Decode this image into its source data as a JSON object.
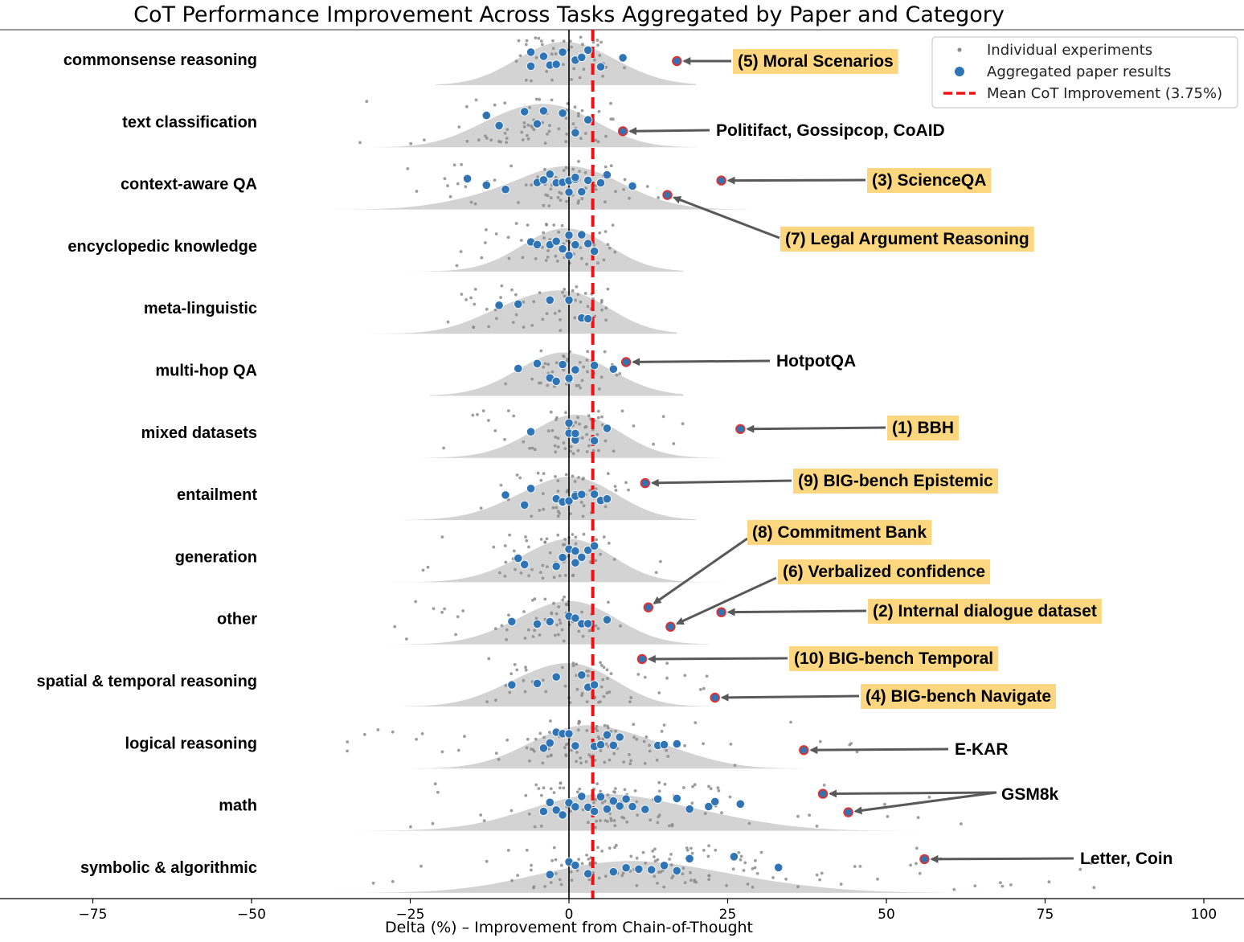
{
  "chart_data": {
    "type": "scatter",
    "title": "CoT Performance Improvement Across Tasks Aggregated by Paper and Category",
    "xlabel": "Delta (%) – Improvement from Chain-of-Thought",
    "ylabel": "",
    "xlim": [
      -80,
      100
    ],
    "xticks": [
      -75,
      -50,
      -25,
      0,
      25,
      50,
      75,
      100
    ],
    "xtick_labels": [
      "−75",
      "−50",
      "−25",
      "0",
      "25",
      "50",
      "75",
      "100"
    ],
    "mean_value": 3.75,
    "grid": false,
    "legend_position": "top-right",
    "legend": [
      {
        "key": "individual",
        "label": "Individual experiments"
      },
      {
        "key": "aggregated",
        "label": "Aggregated paper results"
      },
      {
        "key": "mean",
        "label": "Mean CoT Improvement (3.75%)"
      }
    ],
    "colors": {
      "individual": "#8c8c8c",
      "aggregated": "#2f75b5",
      "highlight_edge": "#e03030",
      "mean_line": "#ee1111",
      "density": "#d3d3d3",
      "annotation_box": "#fcd77f",
      "arrow": "#595959"
    },
    "categories": [
      "commonsense reasoning",
      "text classification",
      "context-aware QA",
      "encyclopedic knowledge",
      "meta-linguistic",
      "multi-hop QA",
      "mixed datasets",
      "entailment",
      "generation",
      "other",
      "spatial & temporal reasoning",
      "logical reasoning",
      "math",
      "symbolic & algorithmic"
    ],
    "series": [
      {
        "category": "commonsense reasoning",
        "aggregated": [
          -6,
          -6,
          -4,
          -3,
          -2,
          -1,
          1,
          2,
          3,
          5,
          8.5
        ],
        "individual_range": [
          -9,
          10
        ]
      },
      {
        "category": "text classification",
        "aggregated": [
          -13,
          -11,
          -7,
          -5,
          -4,
          -1,
          1,
          3
        ],
        "individual_range": [
          -35,
          10
        ]
      },
      {
        "category": "context-aware QA",
        "aggregated": [
          -16,
          -13,
          -10,
          -5,
          -4,
          -3,
          -2,
          -1,
          0,
          0,
          1,
          1,
          2,
          3,
          5,
          6,
          10
        ],
        "individual_range": [
          -27,
          18
        ]
      },
      {
        "category": "encyclopedic knowledge",
        "aggregated": [
          -6,
          -5,
          -3,
          -2,
          -1,
          0,
          0,
          1,
          2,
          3,
          4
        ],
        "individual_range": [
          -20,
          8
        ]
      },
      {
        "category": "meta-linguistic",
        "aggregated": [
          -11,
          -8,
          -3,
          0,
          2,
          3
        ],
        "individual_range": [
          -22,
          7
        ]
      },
      {
        "category": "multi-hop QA",
        "aggregated": [
          -8,
          -5,
          -3,
          -2,
          -1,
          0,
          0,
          1,
          4,
          7
        ],
        "individual_range": [
          -10,
          8
        ]
      },
      {
        "category": "mixed datasets",
        "aggregated": [
          -6,
          0,
          0,
          1,
          1,
          4,
          6
        ],
        "individual_range": [
          -24,
          18
        ]
      },
      {
        "category": "entailment",
        "aggregated": [
          -10,
          -7,
          -6,
          -2,
          -1,
          -1,
          0,
          1,
          1,
          2,
          4,
          5,
          6
        ],
        "individual_range": [
          -14,
          10
        ]
      },
      {
        "category": "generation",
        "aggregated": [
          -8,
          -7,
          -2,
          -1,
          0,
          1,
          1,
          2,
          3,
          4
        ],
        "individual_range": [
          -26,
          15
        ]
      },
      {
        "category": "other",
        "aggregated": [
          -9,
          -5,
          -3,
          0,
          1,
          2,
          3,
          6
        ],
        "individual_range": [
          -28,
          12
        ]
      },
      {
        "category": "spatial & temporal reasoning",
        "aggregated": [
          -9,
          -5,
          -2,
          2,
          3,
          4
        ],
        "individual_range": [
          -14,
          22
        ]
      },
      {
        "category": "logical reasoning",
        "aggregated": [
          -4,
          -3,
          -2,
          -1,
          0,
          1,
          4,
          5,
          6,
          7,
          8,
          14,
          15,
          17
        ],
        "individual_range": [
          -35,
          50
        ]
      },
      {
        "category": "math",
        "aggregated": [
          -4,
          -3,
          -2,
          -1,
          0,
          1,
          2,
          3,
          4,
          5,
          6,
          7,
          8,
          9,
          10,
          12,
          14,
          17,
          19,
          22,
          23,
          27
        ],
        "individual_range": [
          -26,
          62
        ]
      },
      {
        "category": "symbolic & algorithmic",
        "aggregated": [
          -3,
          0,
          1,
          3,
          7,
          9,
          11,
          13,
          15,
          17,
          19,
          26,
          33
        ],
        "individual_range": [
          -35,
          84
        ]
      }
    ],
    "highlights": [
      {
        "category": "commonsense reasoning",
        "x": 17,
        "label": "(5) Moral Scenarios",
        "boxed": true
      },
      {
        "category": "text classification",
        "x": 8.5,
        "label": "Politifact, Gossipcop, CoAID",
        "boxed": false
      },
      {
        "category": "context-aware QA",
        "x": 24,
        "label": "(3) ScienceQA",
        "boxed": true
      },
      {
        "category": "context-aware QA",
        "x": 15.5,
        "label": "(7) Legal Argument Reasoning",
        "boxed": true
      },
      {
        "category": "multi-hop QA",
        "x": 9,
        "label": "HotpotQA",
        "boxed": false
      },
      {
        "category": "mixed datasets",
        "x": 27,
        "label": "(1) BBH",
        "boxed": true
      },
      {
        "category": "entailment",
        "x": 12,
        "label": "(9) BIG-bench Epistemic",
        "boxed": true
      },
      {
        "category": "other",
        "x": 12.5,
        "label": "(8) Commitment Bank",
        "boxed": true
      },
      {
        "category": "other",
        "x": 16,
        "label": "(6) Verbalized confidence",
        "boxed": true
      },
      {
        "category": "other",
        "x": 24,
        "label": "(2) Internal dialogue dataset",
        "boxed": true
      },
      {
        "category": "spatial & temporal reasoning",
        "x": 11.5,
        "label": "(10) BIG-bench Temporal",
        "boxed": true
      },
      {
        "category": "spatial & temporal reasoning",
        "x": 23,
        "label": "(4) BIG-bench Navigate",
        "boxed": true
      },
      {
        "category": "logical reasoning",
        "x": 37,
        "label": "E-KAR",
        "boxed": false
      },
      {
        "category": "math",
        "x": 40,
        "label": "GSM8k",
        "boxed": false
      },
      {
        "category": "math",
        "x": 44,
        "label": "GSM8k",
        "boxed": false
      },
      {
        "category": "symbolic & algorithmic",
        "x": 56,
        "label": "Letter, Coin",
        "boxed": false
      }
    ]
  }
}
